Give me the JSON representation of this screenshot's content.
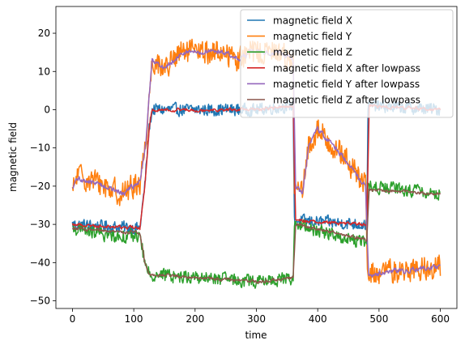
{
  "chart_data": {
    "type": "line",
    "title": "",
    "xlabel": "time",
    "ylabel": "magnetic field",
    "xlim": [
      -27,
      627
    ],
    "ylim": [
      -52,
      27
    ],
    "xticks": [
      0,
      100,
      200,
      300,
      400,
      500,
      600
    ],
    "yticks": [
      -50,
      -40,
      -30,
      -20,
      -10,
      0,
      10,
      20
    ],
    "x_tick_labels": [
      "0",
      "100",
      "200",
      "300",
      "400",
      "500",
      "600"
    ],
    "y_tick_labels": [
      "−50",
      "−40",
      "−30",
      "−20",
      "−10",
      "0",
      "10",
      "20"
    ],
    "grid": false,
    "legend_position": "top-right",
    "segments_note": "piecewise mean levels per series; noise amplitude per series",
    "series": [
      {
        "name": "magnetic field X",
        "color": "#1f77b4",
        "noise": 1.6,
        "levels": [
          [
            0,
            -30
          ],
          [
            110,
            -31
          ],
          [
            118,
            -20
          ],
          [
            125,
            -5
          ],
          [
            130,
            0
          ],
          [
            300,
            0
          ],
          [
            360,
            1
          ],
          [
            362,
            -29
          ],
          [
            480,
            -30
          ],
          [
            482,
            1
          ],
          [
            600,
            0
          ]
        ]
      },
      {
        "name": "magnetic field Y",
        "color": "#ff7f0e",
        "noise": 3.2,
        "levels": [
          [
            0,
            -22
          ],
          [
            8,
            -17
          ],
          [
            55,
            -20
          ],
          [
            80,
            -22
          ],
          [
            110,
            -19
          ],
          [
            120,
            -8
          ],
          [
            125,
            3
          ],
          [
            130,
            13
          ],
          [
            150,
            11
          ],
          [
            180,
            15
          ],
          [
            250,
            15
          ],
          [
            270,
            13
          ],
          [
            290,
            15
          ],
          [
            340,
            15
          ],
          [
            360,
            13
          ],
          [
            362,
            -20
          ],
          [
            375,
            -22
          ],
          [
            385,
            -10
          ],
          [
            400,
            -5
          ],
          [
            440,
            -12
          ],
          [
            478,
            -20
          ],
          [
            481,
            -43
          ],
          [
            600,
            -41
          ]
        ]
      },
      {
        "name": "magnetic field Z",
        "color": "#2ca02c",
        "noise": 1.7,
        "levels": [
          [
            0,
            -31
          ],
          [
            60,
            -33
          ],
          [
            110,
            -33
          ],
          [
            118,
            -40
          ],
          [
            125,
            -43
          ],
          [
            300,
            -45
          ],
          [
            360,
            -44
          ],
          [
            362,
            -30
          ],
          [
            480,
            -35
          ],
          [
            482,
            -20
          ],
          [
            600,
            -22
          ]
        ]
      },
      {
        "name": "magnetic field X after lowpass",
        "color": "#d62728",
        "noise": 0.6,
        "levels": [
          [
            0,
            -30
          ],
          [
            110,
            -31
          ],
          [
            118,
            -20
          ],
          [
            125,
            -5
          ],
          [
            130,
            0
          ],
          [
            300,
            0
          ],
          [
            360,
            1
          ],
          [
            364,
            -29
          ],
          [
            480,
            -30
          ],
          [
            484,
            1
          ],
          [
            600,
            0
          ]
        ]
      },
      {
        "name": "magnetic field Y after lowpass",
        "color": "#9467bd",
        "noise": 1.0,
        "levels": [
          [
            0,
            -21
          ],
          [
            8,
            -18
          ],
          [
            55,
            -20
          ],
          [
            80,
            -22
          ],
          [
            110,
            -19
          ],
          [
            120,
            -8
          ],
          [
            125,
            3
          ],
          [
            130,
            13
          ],
          [
            150,
            11
          ],
          [
            180,
            15
          ],
          [
            250,
            15
          ],
          [
            270,
            13
          ],
          [
            290,
            15
          ],
          [
            340,
            15
          ],
          [
            360,
            13
          ],
          [
            364,
            -20
          ],
          [
            375,
            -22
          ],
          [
            385,
            -10
          ],
          [
            400,
            -5
          ],
          [
            440,
            -12
          ],
          [
            478,
            -20
          ],
          [
            483,
            -43
          ],
          [
            600,
            -41
          ]
        ]
      },
      {
        "name": "magnetic field Z after lowpass",
        "color": "#8c564b",
        "noise": 0.6,
        "levels": [
          [
            0,
            -31
          ],
          [
            60,
            -32
          ],
          [
            110,
            -32
          ],
          [
            118,
            -40
          ],
          [
            125,
            -43
          ],
          [
            300,
            -45
          ],
          [
            360,
            -44
          ],
          [
            364,
            -30
          ],
          [
            480,
            -34
          ],
          [
            484,
            -21
          ],
          [
            600,
            -22
          ]
        ]
      }
    ]
  }
}
